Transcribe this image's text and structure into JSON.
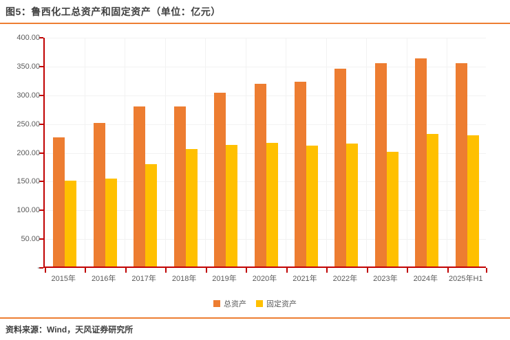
{
  "header": {
    "title": "图5：鲁西化工总资产和固定资产（单位：亿元）"
  },
  "footer": {
    "source": "资料来源：Wind，天风证券研究所"
  },
  "legend": {
    "items": [
      {
        "label": "总资产",
        "color": "#ED7D31"
      },
      {
        "label": "固定资产",
        "color": "#FFC000"
      }
    ]
  },
  "chart_data": {
    "type": "bar",
    "title": "图5：鲁西化工总资产和固定资产（单位：亿元）",
    "xlabel": "",
    "ylabel": "亿元",
    "ylim": [
      0,
      400
    ],
    "y_tick_step": 50,
    "y_tick_labels": [
      "400.00",
      "350.00",
      "300.00",
      "250.00",
      "200.00",
      "150.00",
      "100.00",
      "50.00",
      "-"
    ],
    "categories": [
      "2015年",
      "2016年",
      "2017年",
      "2018年",
      "2019年",
      "2020年",
      "2021年",
      "2022年",
      "2023年",
      "2024年",
      "2025年H1"
    ],
    "series": [
      {
        "name": "总资产",
        "color": "#ED7D31",
        "values": [
          224,
          250,
          278,
          278,
          302,
          318,
          321,
          344,
          353,
          362,
          354
        ]
      },
      {
        "name": "固定资产",
        "color": "#FFC000",
        "values": [
          149,
          153,
          178,
          204,
          211,
          215,
          210,
          214,
          200,
          231,
          228
        ]
      }
    ],
    "grid": "faint-horizontal-and-vertical",
    "legend_position": "bottom-center",
    "axis_color": "#C00000"
  }
}
